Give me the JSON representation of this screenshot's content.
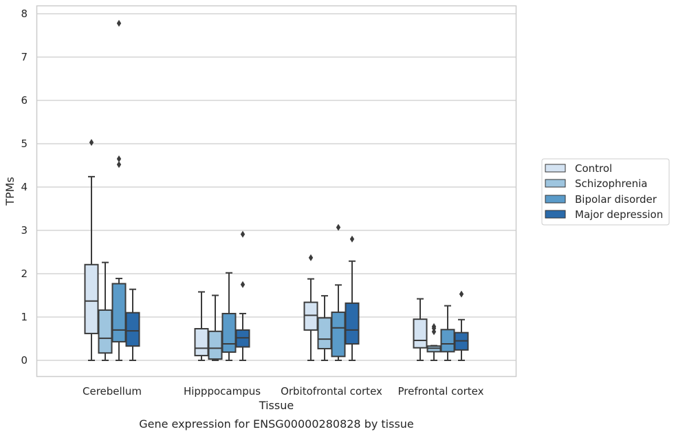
{
  "chart_data": {
    "type": "boxplot",
    "title": "Gene expression for ENSG00000280828 by tissue",
    "xlabel": "Tissue",
    "ylabel": "TPMs",
    "ylim": [
      -0.38,
      8.18
    ],
    "yticks": [
      0,
      1,
      2,
      3,
      4,
      5,
      6,
      7,
      8
    ],
    "grid": true,
    "legend_position": "right",
    "categories": [
      "Cerebellum",
      "Hipppocampus",
      "Orbitofrontal cortex",
      "Prefrontal cortex"
    ],
    "series": [
      {
        "name": "Control",
        "color": "#d4e3f2",
        "boxes": [
          {
            "whislo": 0.0,
            "q1": 0.62,
            "med": 1.37,
            "q3": 2.21,
            "whishi": 4.24,
            "fliers": [
              5.03
            ]
          },
          {
            "whislo": 0.0,
            "q1": 0.11,
            "med": 0.28,
            "q3": 0.73,
            "whishi": 1.58,
            "fliers": []
          },
          {
            "whislo": 0.0,
            "q1": 0.7,
            "med": 1.04,
            "q3": 1.34,
            "whishi": 1.88,
            "fliers": [
              2.37
            ]
          },
          {
            "whislo": 0.0,
            "q1": 0.29,
            "med": 0.46,
            "q3": 0.95,
            "whishi": 1.42,
            "fliers": []
          }
        ]
      },
      {
        "name": "Schizophrenia",
        "color": "#9ec5df",
        "boxes": [
          {
            "whislo": 0.0,
            "q1": 0.17,
            "med": 0.51,
            "q3": 1.16,
            "whishi": 2.26,
            "fliers": []
          },
          {
            "whislo": 0.0,
            "q1": 0.03,
            "med": 0.28,
            "q3": 0.67,
            "whishi": 1.5,
            "fliers": []
          },
          {
            "whislo": 0.0,
            "q1": 0.27,
            "med": 0.49,
            "q3": 0.98,
            "whishi": 1.49,
            "fliers": []
          },
          {
            "whislo": 0.0,
            "q1": 0.2,
            "med": 0.28,
            "q3": 0.33,
            "whishi": 0.34,
            "fliers": [
              0.66,
              0.74,
              0.78
            ]
          }
        ]
      },
      {
        "name": "Bipolar disorder",
        "color": "#5a9bc9",
        "boxes": [
          {
            "whislo": 0.0,
            "q1": 0.43,
            "med": 0.7,
            "q3": 1.77,
            "whishi": 1.89,
            "fliers": [
              4.52,
              4.65,
              7.78
            ]
          },
          {
            "whislo": 0.0,
            "q1": 0.19,
            "med": 0.38,
            "q3": 1.08,
            "whishi": 2.02,
            "fliers": []
          },
          {
            "whislo": 0.0,
            "q1": 0.09,
            "med": 0.75,
            "q3": 1.11,
            "whishi": 1.74,
            "fliers": [
              3.07
            ]
          },
          {
            "whislo": 0.0,
            "q1": 0.2,
            "med": 0.38,
            "q3": 0.71,
            "whishi": 1.26,
            "fliers": []
          }
        ]
      },
      {
        "name": "Major depression",
        "color": "#2a6aaa",
        "boxes": [
          {
            "whislo": 0.0,
            "q1": 0.33,
            "med": 0.68,
            "q3": 1.1,
            "whishi": 1.64,
            "fliers": []
          },
          {
            "whislo": 0.0,
            "q1": 0.31,
            "med": 0.52,
            "q3": 0.7,
            "whishi": 1.08,
            "fliers": [
              1.75,
              2.91
            ]
          },
          {
            "whislo": 0.0,
            "q1": 0.38,
            "med": 0.7,
            "q3": 1.32,
            "whishi": 2.29,
            "fliers": [
              2.8
            ]
          },
          {
            "whislo": 0.0,
            "q1": 0.24,
            "med": 0.45,
            "q3": 0.64,
            "whishi": 0.94,
            "fliers": [
              1.53
            ]
          }
        ]
      }
    ]
  }
}
